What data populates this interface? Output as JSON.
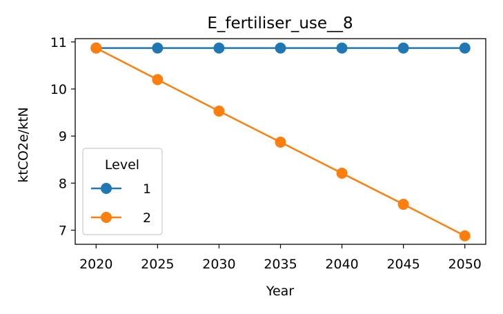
{
  "chart_data": {
    "type": "line",
    "title": "E_fertiliser_use__8",
    "xlabel": "Year",
    "ylabel": "ktCO2e/ktN",
    "x": [
      2020,
      2025,
      2030,
      2035,
      2040,
      2045,
      2050
    ],
    "xlim": [
      2018.3,
      2051.7
    ],
    "ylim": [
      6.7,
      11.07
    ],
    "xticks": [
      2020,
      2025,
      2030,
      2035,
      2040,
      2045,
      2050
    ],
    "yticks": [
      7,
      8,
      9,
      10,
      11
    ],
    "grid": false,
    "legend": {
      "title": "Level",
      "placement": "lower-left"
    },
    "series": [
      {
        "name": "1",
        "color": "#1f77b4",
        "values": [
          10.87,
          10.87,
          10.87,
          10.87,
          10.87,
          10.87,
          10.87
        ]
      },
      {
        "name": "2",
        "color": "#ff7f0e",
        "values": [
          10.87,
          10.2,
          9.53,
          8.87,
          8.21,
          7.55,
          6.88
        ]
      }
    ]
  }
}
